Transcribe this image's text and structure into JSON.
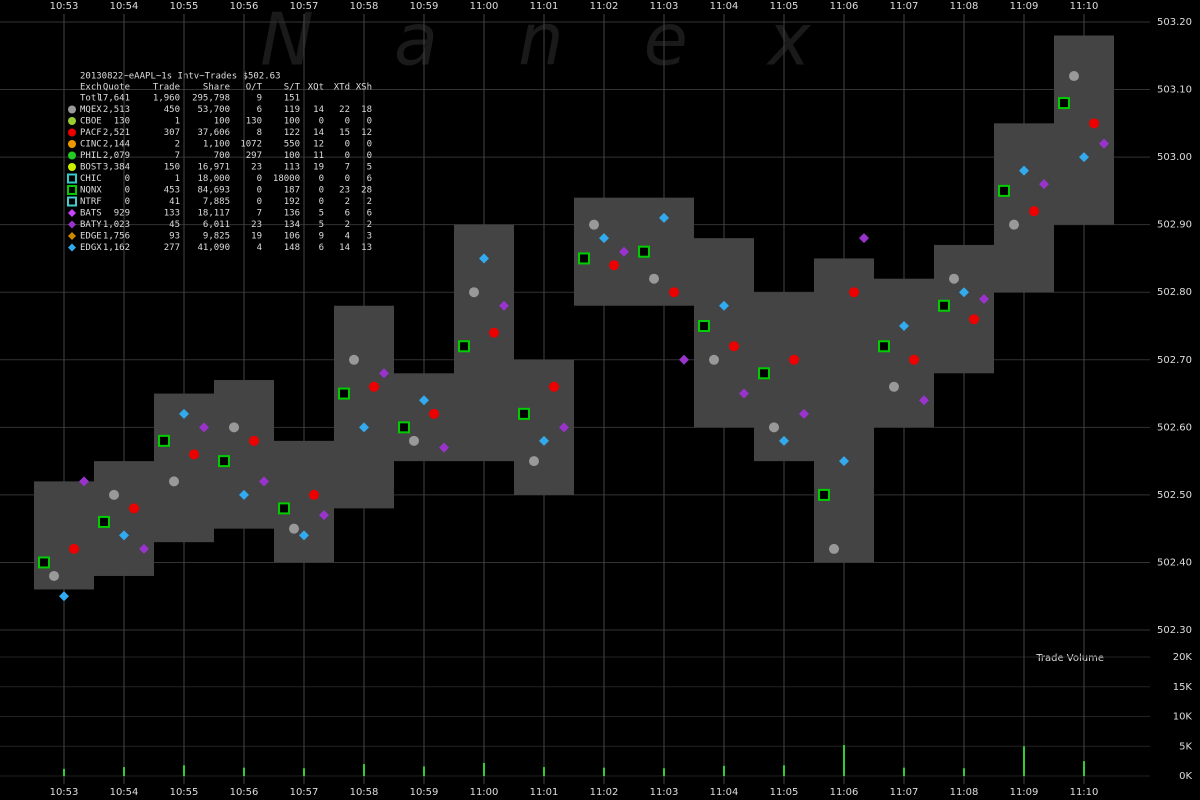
{
  "chart_data": {
    "type": "quote-range",
    "title": "20130822~eAAPL~1s Intv~Trades $502.63",
    "watermark": "Nanex",
    "volume_label": "Trade Volume",
    "categories": [
      "10:53",
      "10:54",
      "10:55",
      "10:56",
      "10:57",
      "10:58",
      "10:59",
      "11:00",
      "11:01",
      "11:02",
      "11:03",
      "11:04",
      "11:05",
      "11:06",
      "11:07",
      "11:08",
      "11:09",
      "11:10"
    ],
    "low": [
      502.36,
      502.38,
      502.43,
      502.45,
      502.4,
      502.48,
      502.55,
      502.55,
      502.5,
      502.78,
      502.78,
      502.6,
      502.55,
      502.4,
      502.6,
      502.68,
      502.8,
      502.9
    ],
    "high": [
      502.52,
      502.55,
      502.65,
      502.67,
      502.58,
      502.78,
      502.68,
      502.9,
      502.7,
      502.94,
      502.94,
      502.88,
      502.8,
      502.85,
      502.82,
      502.87,
      503.05,
      503.18
    ],
    "range_color": "#444444",
    "series": [
      {
        "name": "NQNX",
        "color": "#00cc00",
        "marker": "square",
        "values": [
          502.4,
          502.46,
          502.58,
          502.55,
          502.48,
          502.65,
          502.6,
          502.72,
          502.62,
          502.85,
          502.86,
          502.75,
          502.68,
          502.5,
          502.72,
          502.78,
          502.95,
          503.08
        ]
      },
      {
        "name": "MQEX",
        "color": "#999999",
        "marker": "circle",
        "values": [
          502.38,
          502.5,
          502.52,
          502.6,
          502.45,
          502.7,
          502.58,
          502.8,
          502.55,
          502.9,
          502.82,
          502.7,
          502.6,
          502.42,
          502.66,
          502.82,
          502.9,
          503.12
        ]
      },
      {
        "name": "EDGX",
        "color": "#33aaee",
        "marker": "diamond",
        "values": [
          502.35,
          502.44,
          502.62,
          502.5,
          502.44,
          502.6,
          502.64,
          502.85,
          502.58,
          502.88,
          502.91,
          502.78,
          502.58,
          502.55,
          502.75,
          502.8,
          502.98,
          503.0
        ]
      },
      {
        "name": "PACF",
        "color": "#ee0000",
        "marker": "circle",
        "values": [
          502.42,
          502.48,
          502.56,
          502.58,
          502.5,
          502.66,
          502.62,
          502.74,
          502.66,
          502.84,
          502.8,
          502.72,
          502.7,
          502.8,
          502.7,
          502.76,
          502.92,
          503.05
        ]
      },
      {
        "name": "BATY",
        "color": "#9933cc",
        "marker": "diamond",
        "values": [
          502.52,
          502.42,
          502.6,
          502.52,
          502.47,
          502.68,
          502.57,
          502.78,
          502.6,
          502.86,
          502.7,
          502.65,
          502.62,
          502.88,
          502.64,
          502.79,
          502.96,
          503.02
        ]
      }
    ],
    "ylim": [
      502.25,
      503.22
    ],
    "yticks": [
      {
        "value": 502.3,
        "label": "502.30"
      },
      {
        "value": 502.4,
        "label": "502.40"
      },
      {
        "value": 502.5,
        "label": "502.50"
      },
      {
        "value": 502.6,
        "label": "502.60"
      },
      {
        "value": 502.7,
        "label": "502.70"
      },
      {
        "value": 502.8,
        "label": "502.80"
      },
      {
        "value": 502.9,
        "label": "502.90"
      },
      {
        "value": 503.0,
        "label": "503.00"
      },
      {
        "value": 503.1,
        "label": "503.10"
      },
      {
        "value": 503.2,
        "label": "503.20"
      }
    ],
    "volume": [
      1200,
      1500,
      1800,
      1400,
      1300,
      2000,
      1600,
      2200,
      1500,
      1400,
      1300,
      1700,
      1800,
      5200,
      1400,
      1300,
      5000,
      2500
    ],
    "volume_color": "#33cc33",
    "vlim": [
      0,
      20000
    ],
    "vticks": [
      {
        "value": 0,
        "label": "0K"
      },
      {
        "value": 5000,
        "label": "5K"
      },
      {
        "value": 10000,
        "label": "10K"
      },
      {
        "value": 15000,
        "label": "15K"
      },
      {
        "value": 20000,
        "label": "20K"
      }
    ],
    "grid": true,
    "table": {
      "header": [
        "Exch",
        "Quote",
        "Trade",
        "Share",
        "O/T",
        "S/T",
        "XQt",
        "XTd",
        "XSh"
      ],
      "rows": [
        {
          "cells": [
            "Totl",
            "17,641",
            "1,960",
            "295,798",
            "9",
            "151"
          ]
        },
        {
          "color": "#999999",
          "marker": "circle",
          "cells": [
            "MQEX",
            "2,513",
            "450",
            "53,700",
            "6",
            "119",
            "14",
            "22",
            "18"
          ]
        },
        {
          "color": "#99cc33",
          "marker": "circle",
          "cells": [
            "CBOE",
            "130",
            "1",
            "100",
            "130",
            "100",
            "0",
            "0",
            "0"
          ]
        },
        {
          "color": "#ee0000",
          "marker": "circle",
          "cells": [
            "PACF",
            "2,521",
            "307",
            "37,606",
            "8",
            "122",
            "14",
            "15",
            "12"
          ]
        },
        {
          "color": "#ee9900",
          "marker": "circle",
          "cells": [
            "CINC",
            "2,144",
            "2",
            "1,100",
            "1072",
            "550",
            "12",
            "0",
            "0"
          ]
        },
        {
          "color": "#22cc22",
          "marker": "circle",
          "cells": [
            "PHIL",
            "2,079",
            "7",
            "700",
            "297",
            "100",
            "11",
            "0",
            "0"
          ]
        },
        {
          "color": "#ccee00",
          "marker": "circle",
          "cells": [
            "BOST",
            "3,384",
            "150",
            "16,971",
            "23",
            "113",
            "19",
            "7",
            "5"
          ]
        },
        {
          "color": "#33cccc",
          "marker": "square",
          "cells": [
            "CHIC",
            "0",
            "1",
            "18,000",
            "0",
            "18000",
            "0",
            "0",
            "6"
          ]
        },
        {
          "color": "#00cc00",
          "marker": "square",
          "cells": [
            "NQNX",
            "0",
            "453",
            "84,693",
            "0",
            "187",
            "0",
            "23",
            "28"
          ]
        },
        {
          "color": "#44cccc",
          "marker": "square",
          "cells": [
            "NTRF",
            "0",
            "41",
            "7,885",
            "0",
            "192",
            "0",
            "2",
            "2"
          ]
        },
        {
          "color": "#cc44ff",
          "marker": "diamond",
          "cells": [
            "BATS",
            "929",
            "133",
            "18,117",
            "7",
            "136",
            "5",
            "6",
            "6"
          ]
        },
        {
          "color": "#9933cc",
          "marker": "diamond",
          "cells": [
            "BATY",
            "1,023",
            "45",
            "6,011",
            "23",
            "134",
            "5",
            "2",
            "2"
          ]
        },
        {
          "color": "#cc8800",
          "marker": "diamond",
          "cells": [
            "EDGE",
            "1,756",
            "93",
            "9,825",
            "19",
            "106",
            "9",
            "4",
            "3"
          ]
        },
        {
          "color": "#33aaee",
          "marker": "diamond",
          "cells": [
            "EDGX",
            "1,162",
            "277",
            "41,090",
            "4",
            "148",
            "6",
            "14",
            "13"
          ]
        }
      ]
    }
  }
}
